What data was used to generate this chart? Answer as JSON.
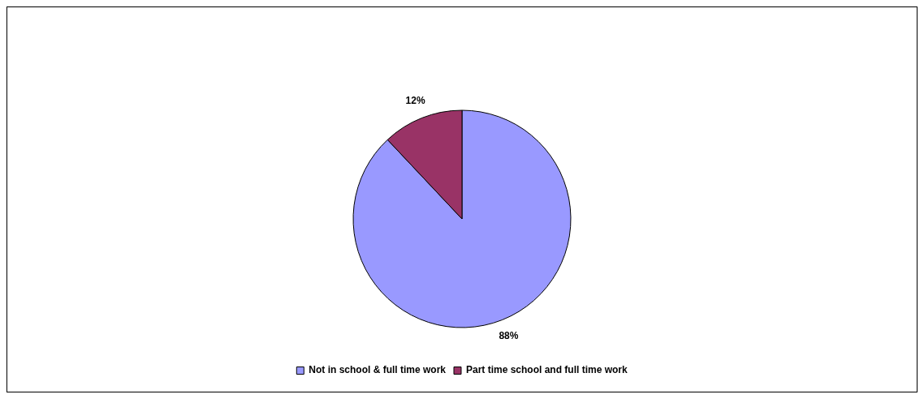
{
  "chart_data": {
    "type": "pie",
    "categories": [
      "Not in school & full time work",
      "Part time school and full time work"
    ],
    "values": [
      88,
      12
    ],
    "colors": [
      "#9999ff",
      "#993366"
    ],
    "value_labels": [
      "88%",
      "12%"
    ],
    "legend": "bottom"
  }
}
